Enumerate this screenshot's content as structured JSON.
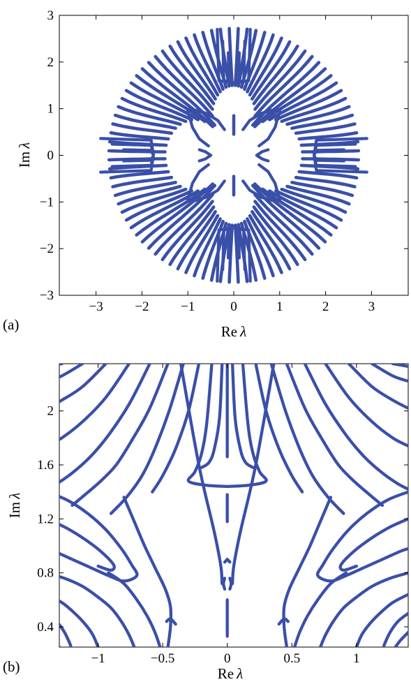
{
  "colors": {
    "curve": "#3a4fa8",
    "axes": "#000000",
    "background": "#ffffff"
  },
  "chart_data": [
    {
      "panel_label": "(a)",
      "type": "scatter",
      "description_symmetry": "fourfold",
      "xlabel_text": "Re",
      "ylabel_text": "Im",
      "symbol": "λ",
      "xlim": [
        -3.8,
        3.8
      ],
      "ylim": [
        -3,
        3
      ],
      "xticks": [
        -3,
        -2,
        -1,
        0,
        1,
        2,
        3
      ],
      "yticks": [
        -3,
        -2,
        -1,
        0,
        1,
        2,
        3
      ],
      "xtick_labels": [
        "−3",
        "−2",
        "−1",
        "0",
        "1",
        "2",
        "3"
      ],
      "ytick_labels": [
        "−3",
        "−2",
        "−1",
        "0",
        "1",
        "2",
        "3"
      ],
      "grid": false,
      "spectrum": {
        "outer_radius": 2.72,
        "num_rays": 88,
        "inner_radius_min": 0.45,
        "nodes_on_real_axis": [
          -1.8,
          1.8
        ],
        "nodes_on_imag_axis": [
          -1.6,
          1.6
        ],
        "imag_axis_segments": [
          [
            0.45,
            0.85
          ],
          [
            -0.85,
            -0.45
          ]
        ]
      }
    },
    {
      "panel_label": "(b)",
      "type": "scatter",
      "xlabel_text": "Re",
      "ylabel_text": "Im",
      "symbol": "λ",
      "xlim": [
        -1.3,
        1.4
      ],
      "ylim": [
        0.25,
        2.35
      ],
      "xticks": [
        -1,
        -0.5,
        0,
        0.5,
        1
      ],
      "yticks": [
        0.4,
        0.8,
        1.2,
        1.6,
        2.0
      ],
      "xtick_labels": [
        "−1",
        "−0.5",
        "0",
        "0.5",
        "1"
      ],
      "ytick_labels": [
        "0.4",
        "0.8",
        "1.2",
        "1.6",
        "2"
      ],
      "grid": false,
      "curves_right": [
        [
          [
            0.04,
            2.35
          ],
          [
            0.06,
            1.95
          ],
          [
            0.1,
            1.72
          ],
          [
            0.14,
            1.62
          ],
          [
            0.2,
            1.58
          ]
        ],
        [
          [
            0.12,
            2.35
          ],
          [
            0.16,
            1.9
          ],
          [
            0.2,
            1.68
          ],
          [
            0.25,
            1.55
          ],
          [
            0.3,
            1.48
          ],
          [
            0.17,
            1.45
          ],
          [
            0.0,
            1.44
          ]
        ],
        [
          [
            0.22,
            2.35
          ],
          [
            0.3,
            2.0
          ],
          [
            0.4,
            1.72
          ],
          [
            0.5,
            1.52
          ],
          [
            0.58,
            1.4
          ]
        ],
        [
          [
            0.34,
            2.35
          ],
          [
            0.45,
            2.0
          ],
          [
            0.56,
            1.72
          ],
          [
            0.66,
            1.52
          ],
          [
            0.78,
            1.36
          ],
          [
            0.9,
            1.24
          ]
        ],
        [
          [
            0.46,
            2.35
          ],
          [
            0.6,
            2.02
          ],
          [
            0.74,
            1.78
          ],
          [
            0.86,
            1.6
          ],
          [
            0.98,
            1.48
          ],
          [
            1.1,
            1.38
          ],
          [
            1.2,
            1.3
          ]
        ],
        [
          [
            0.6,
            2.35
          ],
          [
            0.76,
            2.05
          ],
          [
            0.92,
            1.82
          ],
          [
            1.06,
            1.66
          ],
          [
            1.2,
            1.54
          ],
          [
            1.32,
            1.46
          ],
          [
            1.4,
            1.42
          ]
        ],
        [
          [
            0.76,
            2.35
          ],
          [
            0.94,
            2.1
          ],
          [
            1.12,
            1.92
          ],
          [
            1.28,
            1.8
          ],
          [
            1.4,
            1.74
          ]
        ],
        [
          [
            0.94,
            2.35
          ],
          [
            1.12,
            2.18
          ],
          [
            1.28,
            2.08
          ],
          [
            1.4,
            2.02
          ]
        ],
        [
          [
            1.12,
            2.35
          ],
          [
            1.28,
            2.26
          ],
          [
            1.4,
            2.22
          ]
        ],
        [
          [
            1.28,
            2.35
          ],
          [
            1.4,
            2.33
          ]
        ],
        [
          [
            1.4,
            1.2
          ],
          [
            1.26,
            1.14
          ],
          [
            1.12,
            1.06
          ],
          [
            0.98,
            0.96
          ],
          [
            0.88,
            0.86
          ],
          [
            0.9,
            0.82
          ],
          [
            1.0,
            0.85
          ]
        ],
        [
          [
            1.4,
            1.4
          ],
          [
            1.24,
            1.34
          ],
          [
            1.08,
            1.24
          ],
          [
            0.94,
            1.12
          ],
          [
            0.82,
            0.98
          ],
          [
            0.74,
            0.86
          ],
          [
            0.7,
            0.78
          ],
          [
            0.8,
            0.74
          ],
          [
            0.92,
            0.78
          ],
          [
            1.06,
            0.84
          ],
          [
            1.2,
            0.9
          ],
          [
            1.34,
            0.96
          ],
          [
            1.4,
            0.98
          ]
        ],
        [
          [
            1.4,
            0.8
          ],
          [
            1.26,
            0.76
          ],
          [
            1.12,
            0.7
          ],
          [
            1.0,
            0.62
          ],
          [
            0.9,
            0.54
          ],
          [
            0.82,
            0.44
          ],
          [
            0.76,
            0.34
          ],
          [
            0.72,
            0.25
          ]
        ],
        [
          [
            1.4,
            0.64
          ],
          [
            1.28,
            0.58
          ],
          [
            1.18,
            0.5
          ],
          [
            1.1,
            0.42
          ],
          [
            1.04,
            0.34
          ],
          [
            1.0,
            0.25
          ]
        ],
        [
          [
            1.4,
            0.5
          ],
          [
            1.32,
            0.44
          ],
          [
            1.26,
            0.36
          ],
          [
            1.22,
            0.28
          ],
          [
            1.21,
            0.25
          ]
        ],
        [
          [
            1.4,
            0.36
          ],
          [
            1.34,
            0.3
          ],
          [
            1.3,
            0.25
          ]
        ],
        [
          [
            0.36,
            2.35
          ],
          [
            0.22,
            1.6
          ],
          [
            0.1,
            1.1
          ],
          [
            0.05,
            0.85
          ],
          [
            0.04,
            0.72
          ]
        ],
        [
          [
            0.02,
            0.88
          ],
          [
            0.0,
            0.9
          ]
        ],
        [
          [
            0.46,
            0.25
          ],
          [
            0.44,
            0.4
          ],
          [
            0.44,
            0.55
          ],
          [
            0.48,
            0.68
          ],
          [
            0.56,
            0.84
          ],
          [
            0.64,
            1.0
          ],
          [
            0.72,
            1.18
          ],
          [
            0.8,
            1.36
          ]
        ],
        [
          [
            0.52,
            0.25
          ],
          [
            0.56,
            0.36
          ],
          [
            0.62,
            0.48
          ],
          [
            0.7,
            0.6
          ],
          [
            0.8,
            0.72
          ],
          [
            0.92,
            0.8
          ]
        ],
        [
          [
            0.4,
            0.42
          ],
          [
            0.44,
            0.46
          ],
          [
            0.47,
            0.44
          ]
        ],
        [
          [
            0.02,
            0.68
          ],
          [
            0.03,
            0.72
          ],
          [
            0.02,
            0.76
          ]
        ]
      ],
      "curves_center": [
        [
          [
            0.0,
            2.35
          ],
          [
            0.0,
            1.66
          ]
        ],
        [
          [
            0.0,
            1.38
          ],
          [
            0.0,
            1.18
          ]
        ],
        [
          [
            0.0,
            0.6
          ],
          [
            0.0,
            0.33
          ]
        ]
      ],
      "imag_axis_values": [
        2.35,
        1.66,
        1.38,
        1.18,
        0.6,
        0.33
      ]
    }
  ]
}
